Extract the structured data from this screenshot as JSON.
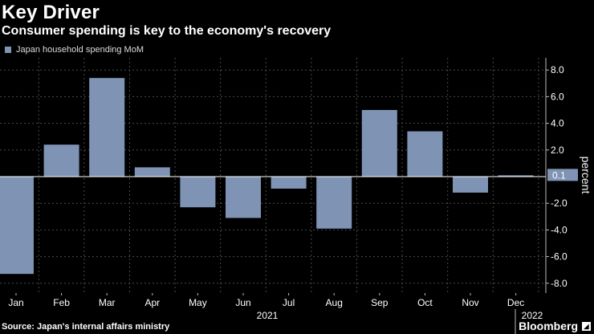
{
  "header": {
    "title": "Key Driver",
    "subtitle": "Consumer spending is key to the economy's recovery"
  },
  "footer": {
    "source": "Source: Japan's internal affairs ministry",
    "brand": "Bloomberg"
  },
  "colors": {
    "bar": "#7f93b5",
    "background": "#000000",
    "grid": "#4a4a4a",
    "zero_line": "#ffffff"
  },
  "chart_data": {
    "type": "bar",
    "title": "Key Driver",
    "subtitle": "Consumer spending is key to the economy's recovery",
    "ylabel": "percent",
    "xlabel": "",
    "series": [
      {
        "name": "Japan household spending MoM",
        "values": [
          -7.3,
          2.4,
          7.4,
          0.7,
          -2.3,
          -3.1,
          -0.9,
          -3.9,
          5.0,
          3.4,
          -1.2,
          0.1
        ]
      }
    ],
    "categories": [
      "Jan",
      "Feb",
      "Mar",
      "Apr",
      "May",
      "Jun",
      "Jul",
      "Aug",
      "Sep",
      "Oct",
      "Nov",
      "Dec"
    ],
    "year_labels": [
      "2021",
      "2022"
    ],
    "yticks": [
      "8.0",
      "6.0",
      "4.0",
      "2.0",
      "-2.0",
      "-4.0",
      "-6.0",
      "-8.0"
    ],
    "ytick_values": [
      8,
      6,
      4,
      2,
      -2,
      -4,
      -6,
      -8
    ],
    "last_value_label": "0.1",
    "ylim": [
      -8.9,
      8.9
    ],
    "grid": true,
    "legend_position": "top-left"
  }
}
